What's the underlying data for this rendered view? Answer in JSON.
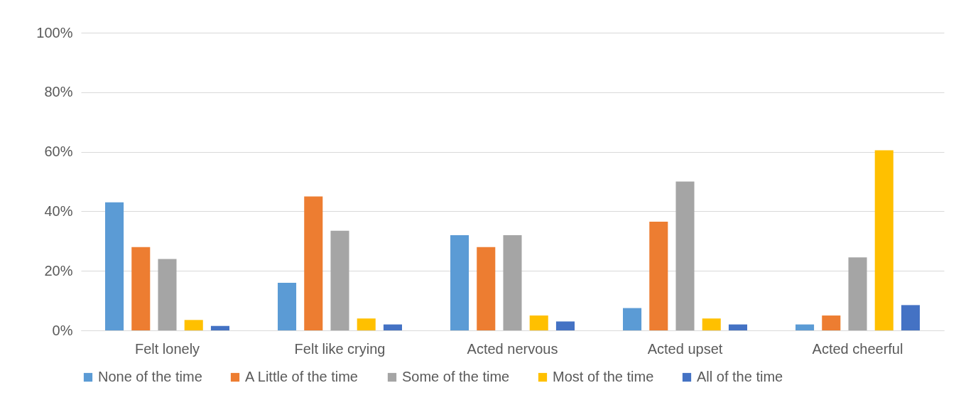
{
  "chart_data": {
    "type": "bar",
    "categories": [
      "Felt lonely",
      "Felt like crying",
      "Acted nervous",
      "Acted upset",
      "Acted cheerful"
    ],
    "series": [
      {
        "name": "None of the time",
        "color": "#5b9bd5",
        "values": [
          43,
          16,
          32,
          7.5,
          2
        ]
      },
      {
        "name": "A Little of the time",
        "color": "#ed7d31",
        "values": [
          28,
          45,
          28,
          36.5,
          5
        ]
      },
      {
        "name": "Some of the time",
        "color": "#a5a5a5",
        "values": [
          24,
          33.5,
          32,
          50,
          24.5
        ]
      },
      {
        "name": "Most of the time",
        "color": "#ffc000",
        "values": [
          3.5,
          4,
          5,
          4,
          60.5
        ]
      },
      {
        "name": "All of the time",
        "color": "#4472c4",
        "values": [
          1.5,
          2,
          3,
          2,
          8.5
        ]
      }
    ],
    "ylim": [
      0,
      100
    ],
    "yticks": [
      {
        "value": 0,
        "label": "0%"
      },
      {
        "value": 20,
        "label": "20%"
      },
      {
        "value": 40,
        "label": "40%"
      },
      {
        "value": 60,
        "label": "60%"
      },
      {
        "value": 80,
        "label": "80%"
      },
      {
        "value": 100,
        "label": "100%"
      }
    ],
    "grid": "y",
    "legend": "bottom"
  }
}
